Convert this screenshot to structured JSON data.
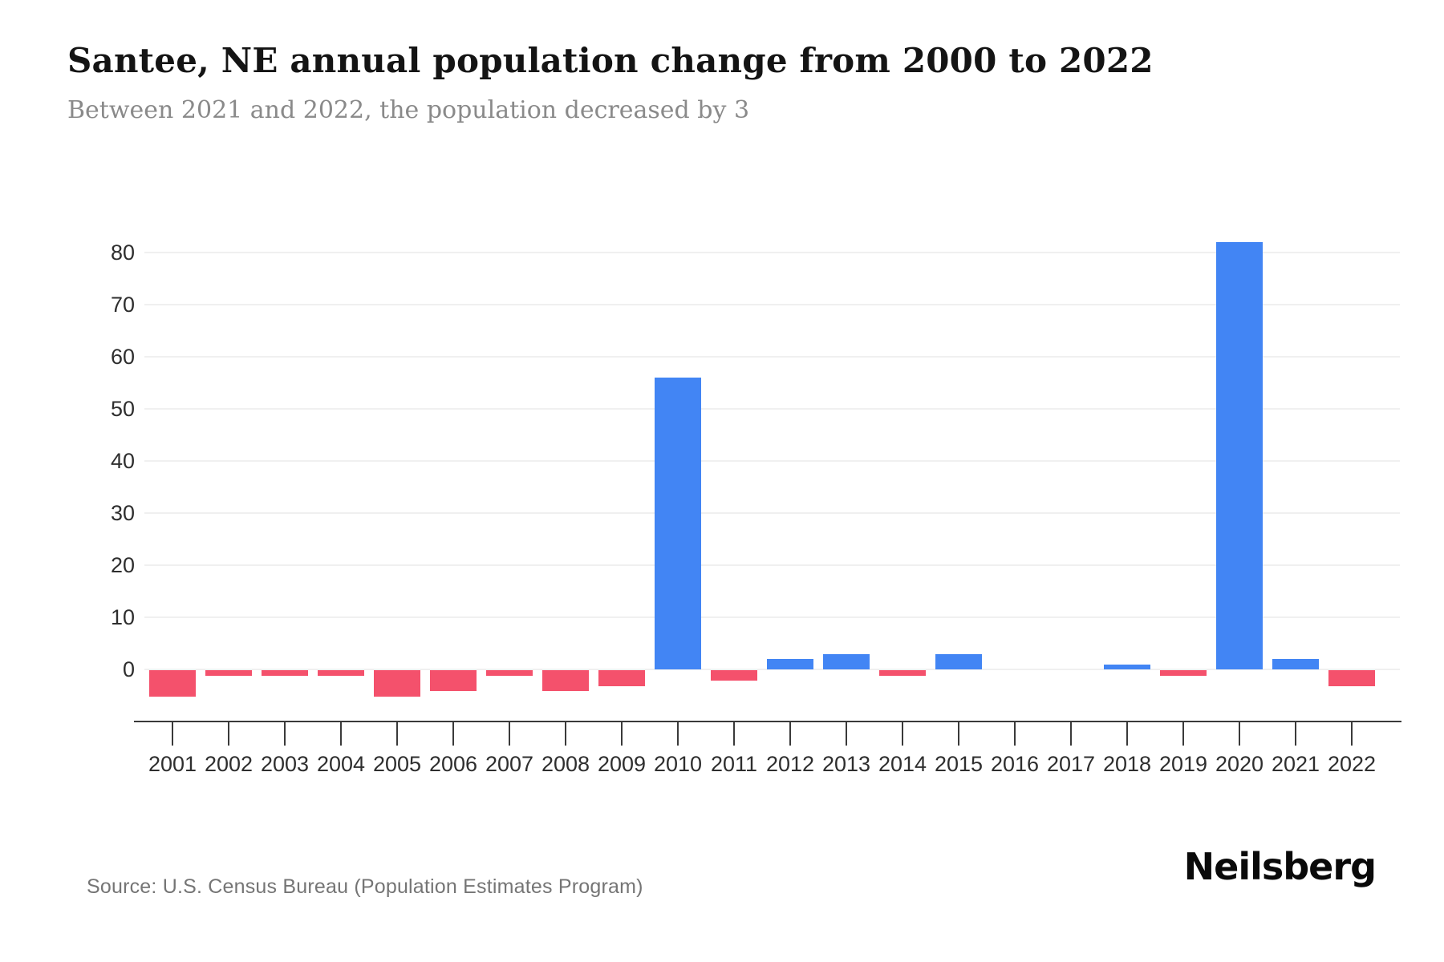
{
  "header": {
    "title": "Santee, NE annual population change from 2000 to 2022",
    "subtitle": "Between 2021 and 2022, the population decreased by 3"
  },
  "footer": {
    "source": "Source: U.S. Census Bureau (Population Estimates Program)",
    "brand": "Neilsberg"
  },
  "colors": {
    "positive_bar": "#4285F4",
    "negative_bar": "#F4516C",
    "gridline": "#f0f0f0",
    "axis": "#3a3a3a",
    "title": "#141414",
    "subtitle": "#8a8a8a",
    "tick_label": "#2e2e2e",
    "source_text": "#757575"
  },
  "chart_data": {
    "type": "bar",
    "title": "Santee, NE annual population change from 2000 to 2022",
    "subtitle": "Between 2021 and 2022, the population decreased by 3",
    "xlabel": "",
    "ylabel": "",
    "categories": [
      "2001",
      "2002",
      "2003",
      "2004",
      "2005",
      "2006",
      "2007",
      "2008",
      "2009",
      "2010",
      "2011",
      "2012",
      "2013",
      "2014",
      "2015",
      "2016",
      "2017",
      "2018",
      "2019",
      "2020",
      "2021",
      "2022"
    ],
    "values": [
      -5,
      -1,
      -1,
      -1,
      -5,
      -4,
      -1,
      -4,
      -3,
      56,
      -2,
      2,
      3,
      -1,
      3,
      0,
      0,
      1,
      -1,
      82,
      2,
      -3
    ],
    "yticks": [
      0,
      10,
      20,
      30,
      40,
      50,
      60,
      70,
      80
    ],
    "ylim": [
      -10,
      90
    ],
    "grid": true,
    "legend": false,
    "positive_color": "#4285F4",
    "negative_color": "#F4516C"
  }
}
